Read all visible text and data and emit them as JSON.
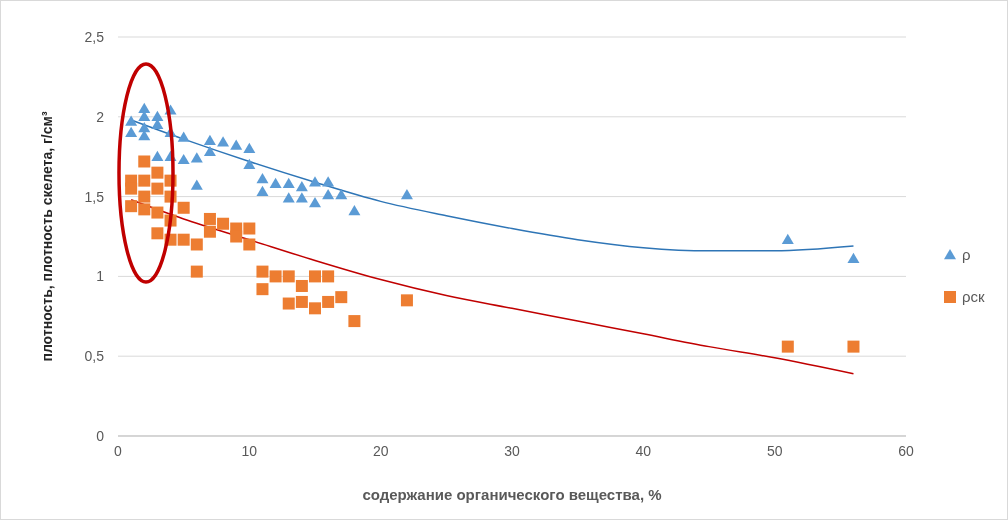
{
  "chart_data": {
    "type": "scatter",
    "xlabel": "содержание органического вещества, %",
    "ylabel": "плотность, плотность скелета, г/см³",
    "xlim": [
      0,
      60
    ],
    "xticks": [
      0,
      10,
      20,
      30,
      40,
      50,
      60
    ],
    "ylim": [
      0,
      2.5
    ],
    "yticks": [
      0,
      {
        "value": 0.5,
        "label": "0,5"
      },
      1,
      {
        "value": 1.5,
        "label": "1,5"
      },
      2,
      {
        "value": 2.5,
        "label": "2,5"
      }
    ],
    "grid": "y",
    "legend": "right",
    "series": [
      {
        "name": "ρ",
        "marker": "triangle",
        "color": "#5b9bd5",
        "x": [
          1,
          1,
          2,
          2,
          2,
          2,
          3,
          3,
          3,
          4,
          4,
          4,
          5,
          5,
          6,
          6,
          7,
          7,
          8,
          9,
          10,
          10,
          11,
          11,
          12,
          13,
          13,
          14,
          14,
          15,
          15,
          16,
          16,
          17,
          18,
          22,
          51,
          56
        ],
        "values": [
          1.97,
          1.9,
          2.05,
          2.0,
          1.93,
          1.88,
          2.0,
          1.95,
          1.75,
          2.04,
          1.9,
          1.75,
          1.87,
          1.73,
          1.57,
          1.74,
          1.85,
          1.78,
          1.84,
          1.82,
          1.8,
          1.7,
          1.61,
          1.53,
          1.58,
          1.58,
          1.49,
          1.56,
          1.49,
          1.59,
          1.46,
          1.59,
          1.51,
          1.51,
          1.41,
          1.51,
          1.23,
          1.11
        ]
      },
      {
        "name": "ρск",
        "marker": "square",
        "color": "#ed7d31",
        "x": [
          1,
          1,
          1,
          2,
          2,
          2,
          2,
          3,
          3,
          3,
          3,
          4,
          4,
          4,
          4,
          5,
          5,
          6,
          6,
          7,
          7,
          8,
          9,
          9,
          10,
          10,
          11,
          11,
          12,
          13,
          13,
          14,
          14,
          15,
          15,
          16,
          16,
          17,
          18,
          22,
          51,
          56
        ],
        "values": [
          1.6,
          1.55,
          1.44,
          1.72,
          1.6,
          1.5,
          1.42,
          1.65,
          1.55,
          1.4,
          1.27,
          1.6,
          1.5,
          1.35,
          1.23,
          1.43,
          1.23,
          1.03,
          1.2,
          1.36,
          1.28,
          1.33,
          1.3,
          1.25,
          1.3,
          1.2,
          1.03,
          0.92,
          1.0,
          1.0,
          0.83,
          0.94,
          0.84,
          1.0,
          0.8,
          1.0,
          0.84,
          0.87,
          0.72,
          0.85,
          0.56,
          0.56
        ]
      },
      {
        "type": "line",
        "marker": "none",
        "color": "#2e75b6",
        "x": [
          1,
          5,
          10,
          15,
          20,
          25,
          30,
          35,
          40,
          45,
          50,
          56
        ],
        "values": [
          1.98,
          1.86,
          1.72,
          1.59,
          1.47,
          1.38,
          1.3,
          1.23,
          1.18,
          1.16,
          1.16,
          1.19
        ]
      },
      {
        "type": "line",
        "marker": "none",
        "color": "#c00000",
        "x": [
          1,
          5,
          10,
          15,
          20,
          25,
          30,
          35,
          40,
          45,
          50,
          56
        ],
        "values": [
          1.48,
          1.36,
          1.23,
          1.1,
          0.98,
          0.88,
          0.8,
          0.72,
          0.64,
          0.56,
          0.49,
          0.39
        ]
      }
    ]
  }
}
